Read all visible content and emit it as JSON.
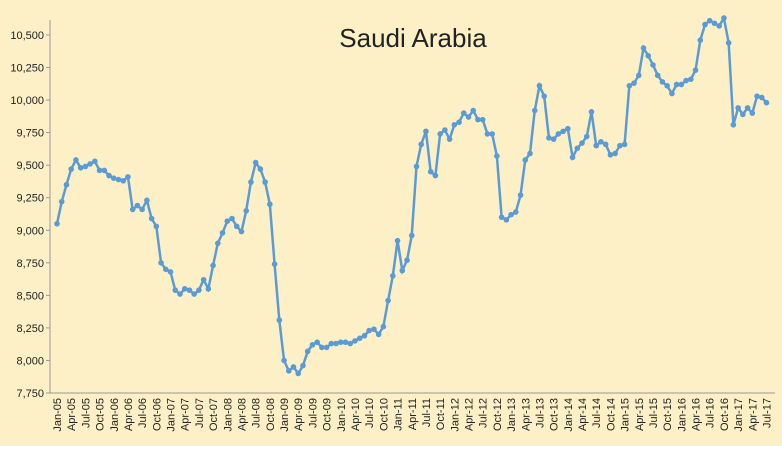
{
  "chart_data": {
    "type": "line",
    "title": "Saudi Arabia",
    "color": "#5b9bd5",
    "background": "#fdf0c6",
    "categories": [
      "Jan-05",
      null,
      null,
      "Apr-05",
      null,
      null,
      "Jul-05",
      null,
      null,
      "Oct-05",
      null,
      null,
      "Jan-06",
      null,
      null,
      "Apr-06",
      null,
      null,
      "Jul-06",
      null,
      null,
      "Oct-06",
      null,
      null,
      "Jan-07",
      null,
      null,
      "Apr-07",
      null,
      null,
      "Jul-07",
      null,
      null,
      "Oct-07",
      null,
      null,
      "Jan-08",
      null,
      null,
      "Apr-08",
      null,
      null,
      "Jul-08",
      null,
      null,
      "Oct-08",
      null,
      null,
      "Jan-09",
      null,
      null,
      "Apr-09",
      null,
      null,
      "Jul-09",
      null,
      null,
      "Oct-09",
      null,
      null,
      "Jan-10",
      null,
      null,
      "Apr-10",
      null,
      null,
      "Jul-10",
      null,
      null,
      "Oct-10",
      null,
      null,
      "Jan-11",
      null,
      null,
      "Apr-11",
      null,
      null,
      "Jul-11",
      null,
      null,
      "Oct-11",
      null,
      null,
      "Jan-12",
      null,
      null,
      "Apr-12",
      null,
      null,
      "Jul-12",
      null,
      null,
      "Oct-12",
      null,
      null,
      "Jan-13",
      null,
      null,
      "Apr-13",
      null,
      null,
      "Jul-13",
      null,
      null,
      "Oct-13",
      null,
      null,
      "Jan-14",
      null,
      null,
      "Apr-14",
      null,
      null,
      "Jul-14",
      null,
      null,
      "Oct-14",
      null,
      null,
      "Jan-15",
      null,
      null,
      "Apr-15",
      null,
      null,
      "Jul-15",
      null,
      null,
      "Oct-15",
      null,
      null,
      "Jan-16",
      null,
      null,
      "Apr-16",
      null,
      null,
      "Jul-16",
      null,
      null,
      "Oct-16",
      null,
      null,
      "Jan-17",
      null,
      null,
      "Apr-17",
      null,
      null,
      "Jul-17"
    ],
    "values": [
      9050,
      9220,
      9350,
      9470,
      9540,
      9480,
      9490,
      9510,
      9530,
      9460,
      9460,
      9420,
      9400,
      9390,
      9380,
      9410,
      9160,
      9190,
      9160,
      9230,
      9090,
      9030,
      8750,
      8700,
      8680,
      8540,
      8510,
      8550,
      8540,
      8510,
      8540,
      8620,
      8550,
      8730,
      8900,
      8980,
      9070,
      9090,
      9030,
      8990,
      9150,
      9370,
      9520,
      9470,
      9370,
      9200,
      8740,
      8310,
      8000,
      7920,
      7950,
      7900,
      7960,
      8070,
      8120,
      8140,
      8100,
      8100,
      8130,
      8130,
      8140,
      8140,
      8130,
      8150,
      8170,
      8190,
      8230,
      8240,
      8200,
      8260,
      8460,
      8650,
      8920,
      8690,
      8770,
      8960,
      9490,
      9660,
      9760,
      9450,
      9420,
      9740,
      9770,
      9700,
      9810,
      9830,
      9900,
      9870,
      9920,
      9850,
      9850,
      9740,
      9740,
      9570,
      9100,
      9080,
      9120,
      9140,
      9270,
      9540,
      9590,
      9920,
      10110,
      10030,
      9710,
      9700,
      9740,
      9760,
      9780,
      9560,
      9630,
      9670,
      9720,
      9910,
      9650,
      9680,
      9660,
      9580,
      9590,
      9650,
      9660,
      10110,
      10130,
      10190,
      10400,
      10340,
      10270,
      10190,
      10140,
      10110,
      10050,
      10120,
      10120,
      10150,
      10160,
      10230,
      10460,
      10580,
      10610,
      10590,
      10570,
      10630,
      10440,
      9810,
      9940,
      9890,
      9940,
      9900,
      10030,
      10020,
      9980
    ],
    "ylim": [
      7750,
      10500
    ],
    "yticks": [
      {
        "value": 7750,
        "label": "7,750"
      },
      {
        "value": 8000,
        "label": "8,000"
      },
      {
        "value": 8250,
        "label": "8,250"
      },
      {
        "value": 8500,
        "label": "8,500"
      },
      {
        "value": 8750,
        "label": "8,750"
      },
      {
        "value": 9000,
        "label": "9,000"
      },
      {
        "value": 9250,
        "label": "9,250"
      },
      {
        "value": 9500,
        "label": "9,500"
      },
      {
        "value": 9750,
        "label": "9,750"
      },
      {
        "value": 10000,
        "label": "10,000"
      },
      {
        "value": 10250,
        "label": "10,250"
      },
      {
        "value": 10500,
        "label": "10,500"
      }
    ]
  }
}
